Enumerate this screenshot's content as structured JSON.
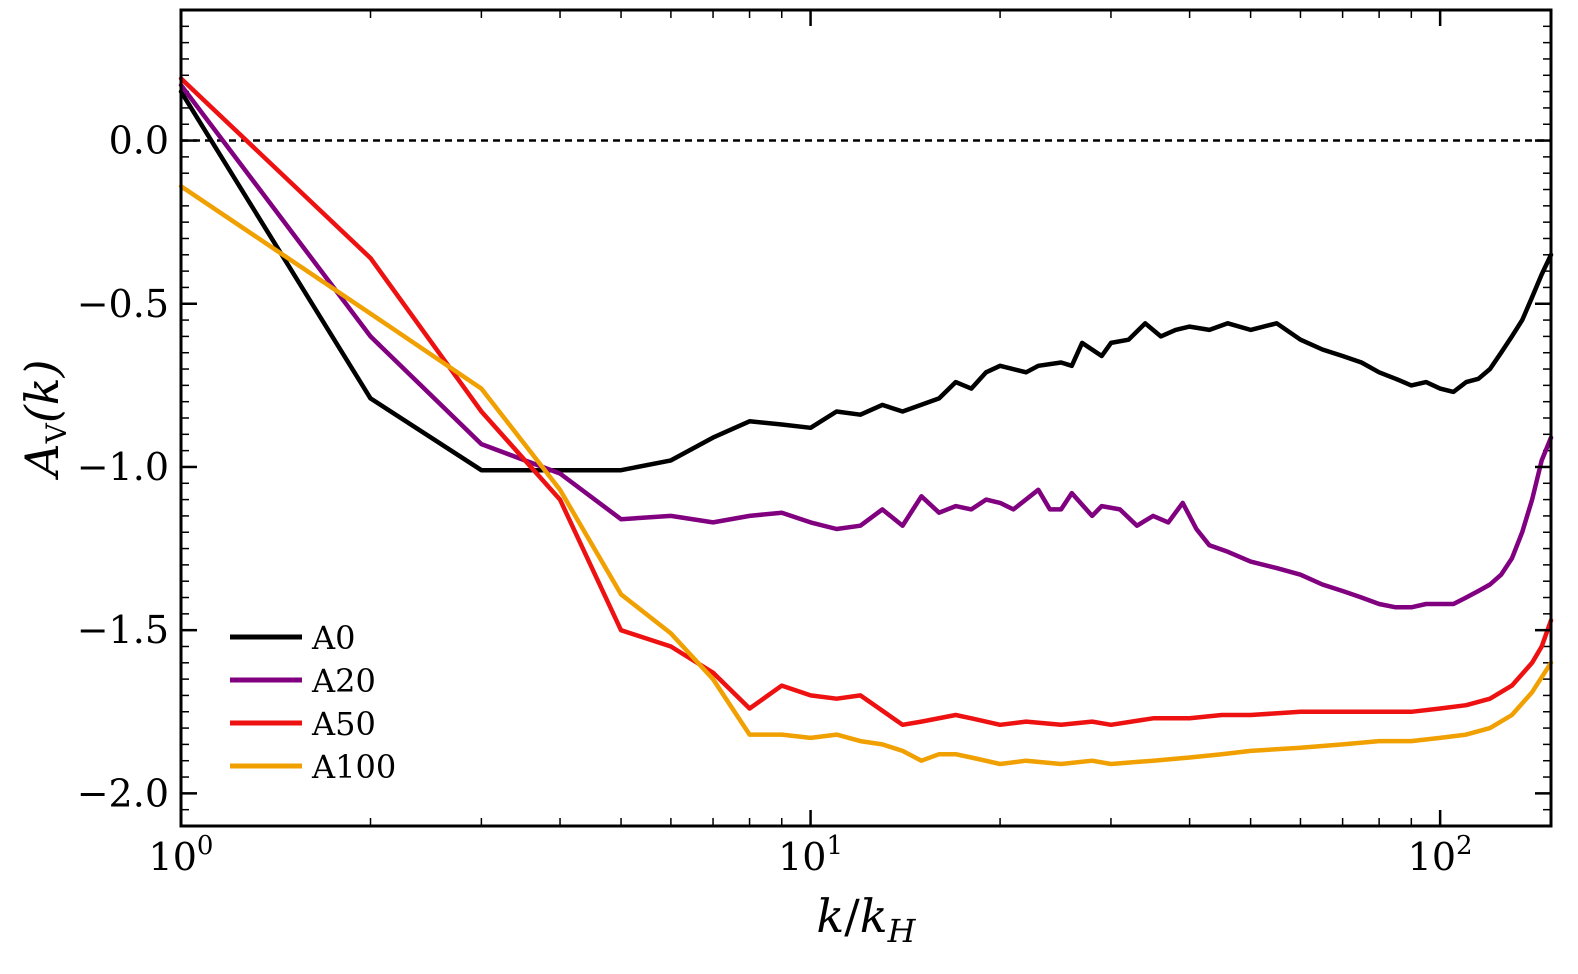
{
  "chart_data": {
    "type": "line",
    "title": "",
    "xlabel": "k/k_H",
    "ylabel": "A_V(k)",
    "xlabel_parts": {
      "num": "k",
      "slash": "/",
      "den": "k",
      "den_sub": "H"
    },
    "ylabel_parts": {
      "main": "A",
      "sub": "V",
      "arg": "(k)"
    },
    "xscale": "log",
    "xlim": [
      1,
      150
    ],
    "ylim": [
      -2.1,
      0.4
    ],
    "xticks": [
      {
        "value": 1,
        "base": "10",
        "exp": "0"
      },
      {
        "value": 10,
        "base": "10",
        "exp": "1"
      },
      {
        "value": 100,
        "base": "10",
        "exp": "2"
      }
    ],
    "yticks": [
      {
        "value": 0.0,
        "label": "0.0"
      },
      {
        "value": -0.5,
        "label": "−0.5"
      },
      {
        "value": -1.0,
        "label": "−1.0"
      },
      {
        "value": -1.5,
        "label": "−1.5"
      },
      {
        "value": -2.0,
        "label": "−2.0"
      }
    ],
    "reference_line": {
      "y": 0.0,
      "style": "dashed",
      "color": "#000000"
    },
    "legend_position": "lower-left",
    "series": [
      {
        "name": "A0",
        "color": "#000000",
        "points": [
          [
            1,
            0.15
          ],
          [
            2,
            -0.79
          ],
          [
            3,
            -1.01
          ],
          [
            4,
            -1.01
          ],
          [
            5,
            -1.01
          ],
          [
            6,
            -0.98
          ],
          [
            7,
            -0.91
          ],
          [
            8,
            -0.86
          ],
          [
            9,
            -0.87
          ],
          [
            10,
            -0.88
          ],
          [
            11,
            -0.83
          ],
          [
            12,
            -0.84
          ],
          [
            13,
            -0.81
          ],
          [
            14,
            -0.83
          ],
          [
            16,
            -0.79
          ],
          [
            17,
            -0.74
          ],
          [
            18,
            -0.76
          ],
          [
            19,
            -0.71
          ],
          [
            20,
            -0.69
          ],
          [
            22,
            -0.71
          ],
          [
            23,
            -0.69
          ],
          [
            25,
            -0.68
          ],
          [
            26,
            -0.69
          ],
          [
            27,
            -0.62
          ],
          [
            29,
            -0.66
          ],
          [
            30,
            -0.62
          ],
          [
            32,
            -0.61
          ],
          [
            34,
            -0.56
          ],
          [
            36,
            -0.6
          ],
          [
            38,
            -0.58
          ],
          [
            40,
            -0.57
          ],
          [
            43,
            -0.58
          ],
          [
            46,
            -0.56
          ],
          [
            50,
            -0.58
          ],
          [
            55,
            -0.56
          ],
          [
            60,
            -0.61
          ],
          [
            65,
            -0.64
          ],
          [
            70,
            -0.66
          ],
          [
            75,
            -0.68
          ],
          [
            80,
            -0.71
          ],
          [
            85,
            -0.73
          ],
          [
            90,
            -0.75
          ],
          [
            95,
            -0.74
          ],
          [
            100,
            -0.76
          ],
          [
            105,
            -0.77
          ],
          [
            110,
            -0.74
          ],
          [
            115,
            -0.73
          ],
          [
            120,
            -0.7
          ],
          [
            125,
            -0.65
          ],
          [
            130,
            -0.6
          ],
          [
            135,
            -0.55
          ],
          [
            140,
            -0.48
          ],
          [
            145,
            -0.41
          ],
          [
            150,
            -0.35
          ]
        ]
      },
      {
        "name": "A20",
        "color": "#800080",
        "points": [
          [
            1,
            0.17
          ],
          [
            2,
            -0.6
          ],
          [
            3,
            -0.93
          ],
          [
            4,
            -1.02
          ],
          [
            5,
            -1.16
          ],
          [
            6,
            -1.15
          ],
          [
            7,
            -1.17
          ],
          [
            8,
            -1.15
          ],
          [
            9,
            -1.14
          ],
          [
            10,
            -1.17
          ],
          [
            11,
            -1.19
          ],
          [
            12,
            -1.18
          ],
          [
            13,
            -1.13
          ],
          [
            14,
            -1.18
          ],
          [
            15,
            -1.09
          ],
          [
            16,
            -1.14
          ],
          [
            17,
            -1.12
          ],
          [
            18,
            -1.13
          ],
          [
            19,
            -1.1
          ],
          [
            20,
            -1.11
          ],
          [
            21,
            -1.13
          ],
          [
            23,
            -1.07
          ],
          [
            24,
            -1.13
          ],
          [
            25,
            -1.13
          ],
          [
            26,
            -1.08
          ],
          [
            28,
            -1.15
          ],
          [
            29,
            -1.12
          ],
          [
            31,
            -1.13
          ],
          [
            33,
            -1.18
          ],
          [
            35,
            -1.15
          ],
          [
            37,
            -1.17
          ],
          [
            39,
            -1.11
          ],
          [
            41,
            -1.19
          ],
          [
            43,
            -1.24
          ],
          [
            46,
            -1.26
          ],
          [
            50,
            -1.29
          ],
          [
            55,
            -1.31
          ],
          [
            60,
            -1.33
          ],
          [
            65,
            -1.36
          ],
          [
            70,
            -1.38
          ],
          [
            75,
            -1.4
          ],
          [
            80,
            -1.42
          ],
          [
            85,
            -1.43
          ],
          [
            90,
            -1.43
          ],
          [
            95,
            -1.42
          ],
          [
            100,
            -1.42
          ],
          [
            105,
            -1.42
          ],
          [
            110,
            -1.4
          ],
          [
            115,
            -1.38
          ],
          [
            120,
            -1.36
          ],
          [
            125,
            -1.33
          ],
          [
            130,
            -1.28
          ],
          [
            135,
            -1.2
          ],
          [
            140,
            -1.1
          ],
          [
            145,
            -0.98
          ],
          [
            150,
            -0.91
          ]
        ]
      },
      {
        "name": "A50",
        "color": "#ee1111",
        "points": [
          [
            1,
            0.19
          ],
          [
            2,
            -0.36
          ],
          [
            3,
            -0.83
          ],
          [
            4,
            -1.1
          ],
          [
            5,
            -1.5
          ],
          [
            6,
            -1.55
          ],
          [
            7,
            -1.63
          ],
          [
            8,
            -1.74
          ],
          [
            9,
            -1.67
          ],
          [
            10,
            -1.7
          ],
          [
            11,
            -1.71
          ],
          [
            12,
            -1.7
          ],
          [
            14,
            -1.79
          ],
          [
            15,
            -1.78
          ],
          [
            17,
            -1.76
          ],
          [
            18,
            -1.77
          ],
          [
            20,
            -1.79
          ],
          [
            22,
            -1.78
          ],
          [
            25,
            -1.79
          ],
          [
            28,
            -1.78
          ],
          [
            30,
            -1.79
          ],
          [
            35,
            -1.77
          ],
          [
            40,
            -1.77
          ],
          [
            45,
            -1.76
          ],
          [
            50,
            -1.76
          ],
          [
            60,
            -1.75
          ],
          [
            70,
            -1.75
          ],
          [
            80,
            -1.75
          ],
          [
            90,
            -1.75
          ],
          [
            100,
            -1.74
          ],
          [
            110,
            -1.73
          ],
          [
            120,
            -1.71
          ],
          [
            130,
            -1.67
          ],
          [
            140,
            -1.6
          ],
          [
            145,
            -1.55
          ],
          [
            150,
            -1.47
          ]
        ]
      },
      {
        "name": "A100",
        "color": "#f0a000",
        "points": [
          [
            1,
            -0.14
          ],
          [
            2,
            -0.53
          ],
          [
            3,
            -0.76
          ],
          [
            4,
            -1.07
          ],
          [
            5,
            -1.39
          ],
          [
            6,
            -1.51
          ],
          [
            7,
            -1.65
          ],
          [
            8,
            -1.82
          ],
          [
            9,
            -1.82
          ],
          [
            10,
            -1.83
          ],
          [
            11,
            -1.82
          ],
          [
            12,
            -1.84
          ],
          [
            13,
            -1.85
          ],
          [
            14,
            -1.87
          ],
          [
            15,
            -1.9
          ],
          [
            16,
            -1.88
          ],
          [
            17,
            -1.88
          ],
          [
            18,
            -1.89
          ],
          [
            20,
            -1.91
          ],
          [
            22,
            -1.9
          ],
          [
            25,
            -1.91
          ],
          [
            28,
            -1.9
          ],
          [
            30,
            -1.91
          ],
          [
            35,
            -1.9
          ],
          [
            40,
            -1.89
          ],
          [
            45,
            -1.88
          ],
          [
            50,
            -1.87
          ],
          [
            60,
            -1.86
          ],
          [
            70,
            -1.85
          ],
          [
            80,
            -1.84
          ],
          [
            90,
            -1.84
          ],
          [
            100,
            -1.83
          ],
          [
            110,
            -1.82
          ],
          [
            120,
            -1.8
          ],
          [
            130,
            -1.76
          ],
          [
            140,
            -1.69
          ],
          [
            150,
            -1.6
          ]
        ]
      }
    ]
  }
}
